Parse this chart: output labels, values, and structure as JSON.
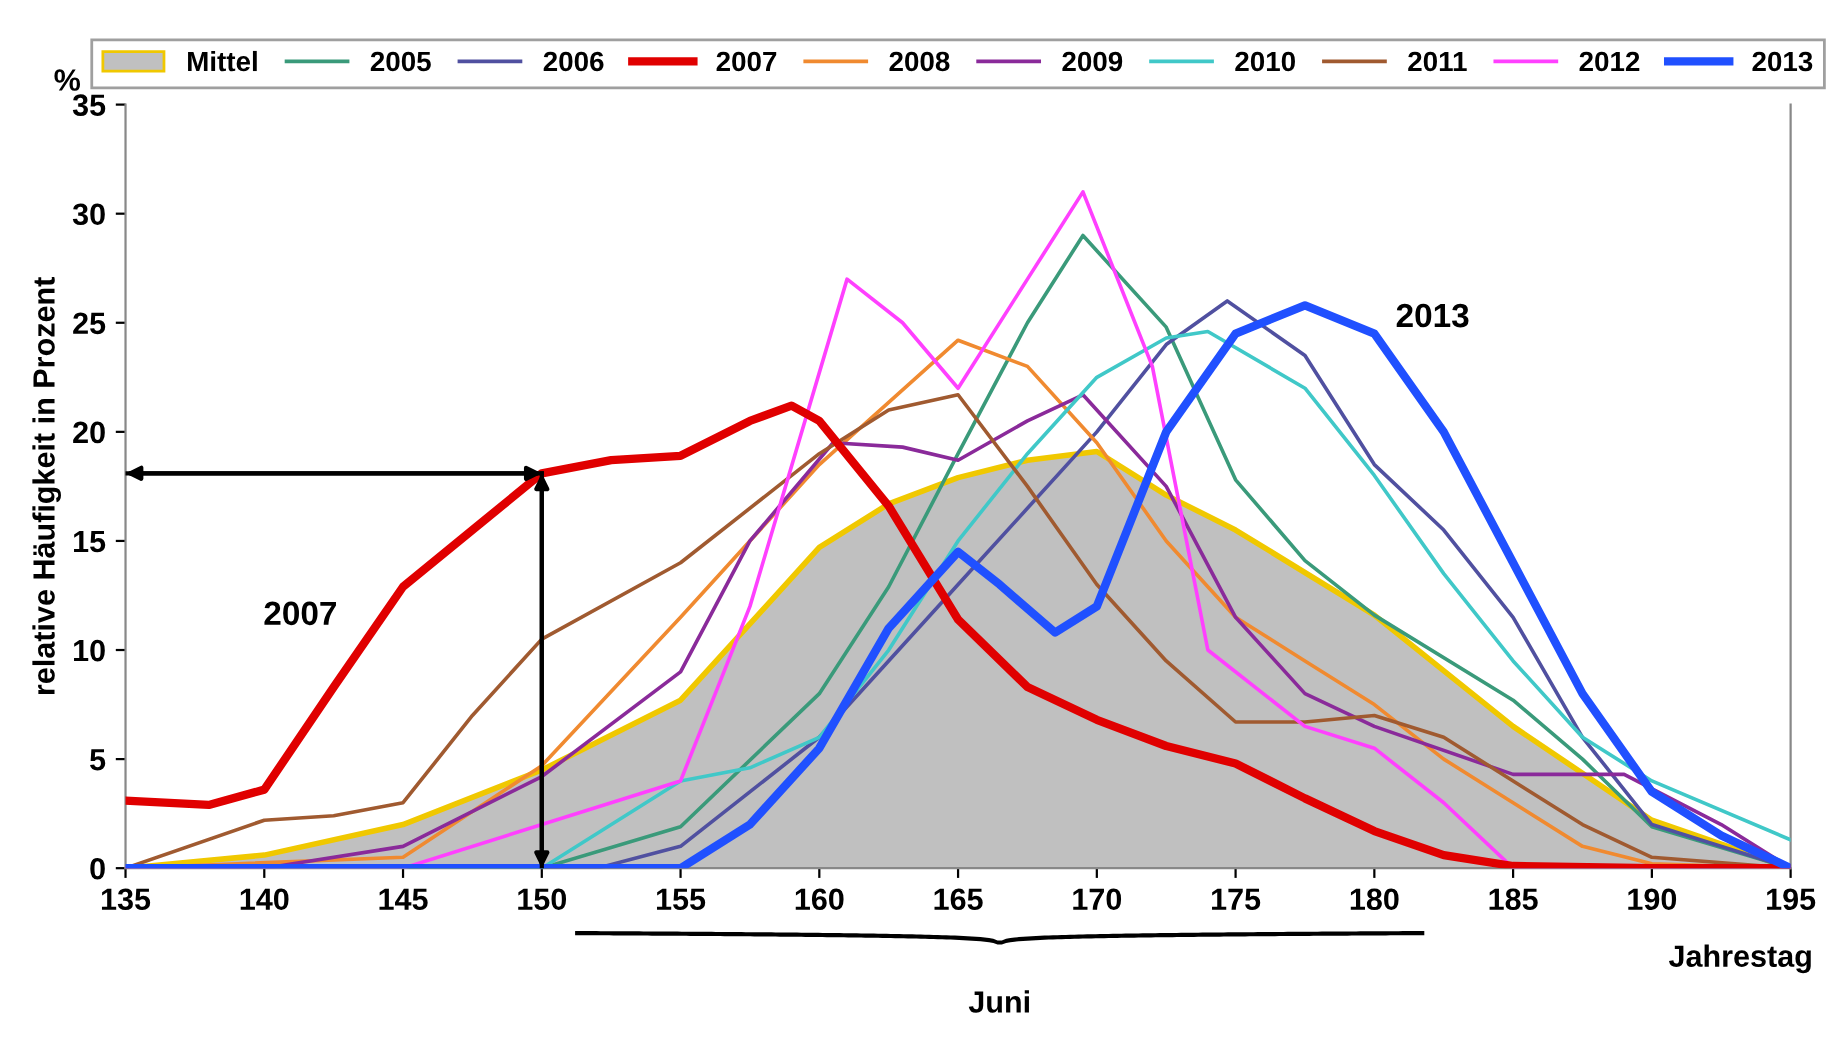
{
  "chart_data": {
    "type": "line",
    "xlabel": "Jahrestag",
    "ylabel": "relative Häufigkeit in Prozent",
    "xlim": [
      135,
      195
    ],
    "xticks": [
      135,
      140,
      145,
      150,
      155,
      160,
      165,
      170,
      175,
      180,
      185,
      190,
      195
    ],
    "ylim": [
      0,
      35
    ],
    "yticks": [
      0,
      5,
      10,
      15,
      20,
      25,
      30,
      35
    ],
    "grid": false,
    "legend": "top",
    "marker": "none",
    "line_style": "solid",
    "annotations": [
      "%",
      "Juni",
      "2007",
      "2013"
    ],
    "ref_lines": [
      {
        "axis": "x",
        "value": 150,
        "label": null,
        "color": "#000000"
      },
      {
        "axis": "y",
        "value": 18.1,
        "label": null,
        "color": "#000000"
      }
    ],
    "series": [
      {
        "name": "Mittel",
        "type": "area",
        "color": "#c0c0c0",
        "x": [
          135,
          140,
          145,
          150,
          155,
          160,
          162.5,
          165,
          167.5,
          170,
          172.5,
          175,
          180,
          185,
          190,
          195
        ],
        "values": [
          0,
          0.6,
          2,
          4.5,
          7.7,
          14.7,
          16.7,
          17.9,
          18.7,
          19.1,
          17.1,
          15.5,
          11.6,
          6.5,
          2.2,
          0
        ]
      },
      {
        "name": "2005",
        "color": "#3a9a7a",
        "x": [
          135,
          150,
          155,
          160,
          162.5,
          165,
          167.5,
          169.5,
          172.5,
          175,
          177.5,
          180,
          185,
          187.5,
          190,
          195
        ],
        "values": [
          0,
          0,
          1.9,
          8,
          12.9,
          19,
          25,
          29,
          24.8,
          17.8,
          14.1,
          11.6,
          7.7,
          5,
          1.9,
          0
        ]
      },
      {
        "name": "2006",
        "color": "#5050a0",
        "x": [
          135,
          152,
          155,
          160,
          165,
          170,
          172.5,
          174.7,
          177.5,
          180,
          182.5,
          185,
          187.5,
          190,
          195
        ],
        "values": [
          0,
          0,
          1,
          6,
          13,
          20,
          24,
          26,
          23.5,
          18.5,
          15.5,
          11.5,
          6,
          2,
          0
        ]
      },
      {
        "name": "2007",
        "color": "#e00000",
        "x": [
          135,
          138,
          140,
          142.5,
          145,
          147.5,
          150,
          152.5,
          155,
          157.5,
          159,
          160,
          162.5,
          165,
          167.5,
          170,
          172.5,
          175,
          177.5,
          180,
          182.5,
          185,
          190,
          195
        ],
        "values": [
          3.1,
          2.9,
          3.6,
          8.3,
          12.9,
          15.5,
          18.1,
          18.7,
          18.9,
          20.5,
          21.2,
          20.5,
          16.6,
          11.4,
          8.3,
          6.8,
          5.6,
          4.8,
          3.2,
          1.7,
          0.6,
          0.1,
          0,
          0
        ]
      },
      {
        "name": "2008",
        "color": "#f08a30",
        "x": [
          135,
          145,
          150,
          155,
          160,
          165,
          167.5,
          170,
          172.5,
          175,
          177.5,
          180,
          182.5,
          185,
          187.5,
          190,
          195
        ],
        "values": [
          0,
          0.5,
          4.7,
          11.5,
          18.5,
          24.2,
          23,
          19.5,
          15,
          11.5,
          9.5,
          7.5,
          5,
          3,
          1,
          0.2,
          0
        ]
      },
      {
        "name": "2009",
        "color": "#8a2a9a",
        "x": [
          135,
          140,
          145,
          150,
          155,
          157.5,
          160.5,
          163,
          165,
          167.5,
          169.5,
          172.5,
          175,
          177.5,
          180,
          185,
          189,
          192.5,
          195
        ],
        "values": [
          0,
          0,
          1,
          4.2,
          9,
          15,
          19.5,
          19.3,
          18.7,
          20.5,
          21.7,
          17.5,
          11.5,
          8,
          6.5,
          4.3,
          4.3,
          2,
          0
        ]
      },
      {
        "name": "2010",
        "color": "#40c8c8",
        "x": [
          135,
          150,
          155,
          157.5,
          160,
          162.5,
          165,
          167.5,
          170,
          172.5,
          174,
          177.5,
          180,
          182.5,
          185,
          187.5,
          190,
          195
        ],
        "values": [
          0,
          0,
          4,
          4.6,
          6,
          10,
          15,
          19,
          22.5,
          24.3,
          24.6,
          22,
          18,
          13.5,
          9.5,
          6,
          4,
          1.3
        ]
      },
      {
        "name": "2011",
        "color": "#a05a30",
        "x": [
          135,
          140,
          142.5,
          145,
          147.5,
          150,
          155,
          160,
          162.5,
          165,
          167.5,
          170,
          172.5,
          175,
          177.5,
          180,
          182.5,
          185,
          187.5,
          190,
          195
        ],
        "values": [
          0,
          2.2,
          2.4,
          3,
          7,
          10.5,
          14,
          19,
          21,
          21.7,
          17.5,
          13,
          9.5,
          6.7,
          6.7,
          7,
          6,
          4,
          2,
          0.5,
          0
        ]
      },
      {
        "name": "2012",
        "color": "#ff40ff",
        "x": [
          135,
          145,
          150,
          155,
          157.5,
          161,
          163,
          165,
          167.5,
          169.5,
          172,
          174,
          177.5,
          180,
          182.5,
          185,
          195
        ],
        "values": [
          0,
          0,
          2,
          4,
          12,
          27,
          25,
          22,
          27,
          31,
          23,
          10,
          6.5,
          5.5,
          3,
          0,
          0
        ]
      },
      {
        "name": "2013",
        "color": "#2050ff",
        "x": [
          135,
          155,
          157.5,
          160,
          162.5,
          165,
          166.5,
          168.5,
          170,
          172.5,
          175,
          177.5,
          180,
          182.5,
          185,
          187.5,
          190,
          192.5,
          195
        ],
        "values": [
          0,
          0,
          2,
          5.5,
          11,
          14.5,
          13,
          10.8,
          12,
          20,
          24.5,
          25.8,
          24.5,
          20,
          14,
          8,
          3.5,
          1.5,
          0
        ]
      }
    ]
  }
}
